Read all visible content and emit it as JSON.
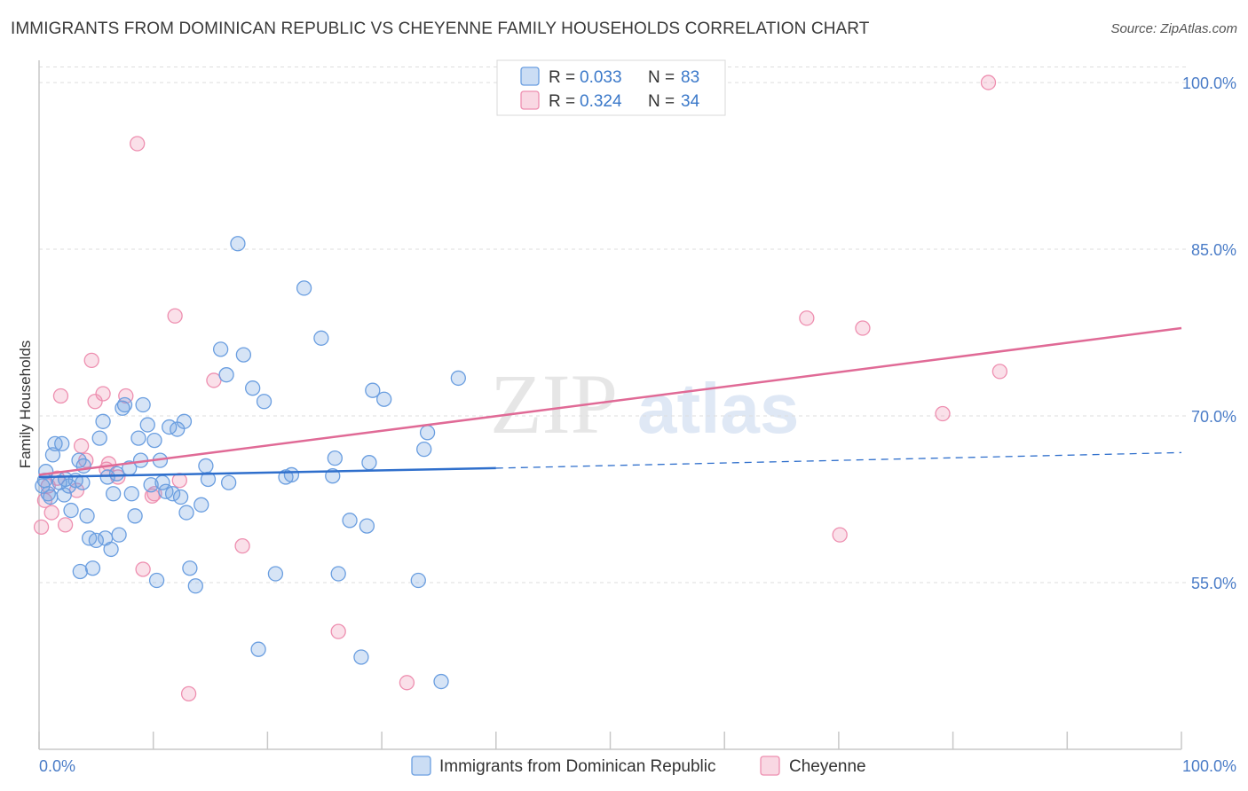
{
  "header": {
    "title": "IMMIGRANTS FROM DOMINICAN REPUBLIC VS CHEYENNE FAMILY HOUSEHOLDS CORRELATION CHART",
    "source": "Source: ZipAtlas.com"
  },
  "watermark": {
    "zip": "ZIP",
    "atlas": "atlas"
  },
  "legend": {
    "r_label": "R =",
    "n_label": "N =",
    "series1": {
      "r": "0.033",
      "n": "83"
    },
    "series2": {
      "r": "0.324",
      "n": "34"
    }
  },
  "chart_data": {
    "type": "scatter",
    "title": "IMMIGRANTS FROM DOMINICAN REPUBLIC VS CHEYENNE FAMILY HOUSEHOLDS CORRELATION CHART",
    "xlabel": "",
    "ylabel": "Family Households",
    "xlim": [
      0,
      100
    ],
    "ylim": [
      40,
      102
    ],
    "x_tick_labels": [
      "0.0%",
      "100.0%"
    ],
    "y_ticks": [
      {
        "value": 100,
        "label": "100.0%"
      },
      {
        "value": 85,
        "label": "85.0%"
      },
      {
        "value": 70,
        "label": "70.0%"
      },
      {
        "value": 55,
        "label": "55.0%"
      }
    ],
    "colors": {
      "series1": "#6a9ee0",
      "series2": "#ee8fb0",
      "line1": "#2f6fcc",
      "line2": "#e06a96",
      "tick": "#4a7cc7"
    },
    "series": [
      {
        "name": "Immigrants from Dominican Republic",
        "trend": {
          "x": [
            0,
            40
          ],
          "y": [
            64.5,
            65.3
          ],
          "dashed_to": [
            100,
            66.7
          ]
        },
        "points": [
          [
            0.5,
            64.2
          ],
          [
            0.8,
            63.0
          ],
          [
            0.6,
            65.0
          ],
          [
            1.2,
            66.5
          ],
          [
            1.4,
            67.5
          ],
          [
            1.8,
            64.0
          ],
          [
            2.0,
            67.5
          ],
          [
            2.3,
            64.3
          ],
          [
            2.6,
            63.7
          ],
          [
            2.8,
            61.5
          ],
          [
            3.2,
            64.2
          ],
          [
            3.5,
            66.0
          ],
          [
            3.6,
            56.0
          ],
          [
            3.9,
            65.5
          ],
          [
            4.2,
            61.0
          ],
          [
            4.4,
            59.0
          ],
          [
            4.7,
            56.3
          ],
          [
            5.0,
            58.8
          ],
          [
            5.3,
            68.0
          ],
          [
            5.6,
            69.5
          ],
          [
            5.8,
            59.0
          ],
          [
            6.0,
            64.5
          ],
          [
            6.3,
            58.0
          ],
          [
            6.5,
            63.0
          ],
          [
            6.8,
            64.8
          ],
          [
            7.0,
            59.3
          ],
          [
            7.3,
            70.7
          ],
          [
            7.5,
            71.0
          ],
          [
            7.9,
            65.3
          ],
          [
            8.1,
            63.0
          ],
          [
            8.4,
            61.0
          ],
          [
            8.7,
            68.0
          ],
          [
            8.9,
            66.0
          ],
          [
            9.1,
            71.0
          ],
          [
            9.5,
            69.2
          ],
          [
            9.8,
            63.8
          ],
          [
            10.1,
            67.8
          ],
          [
            10.3,
            55.2
          ],
          [
            10.6,
            66.0
          ],
          [
            10.8,
            64.0
          ],
          [
            11.1,
            63.2
          ],
          [
            11.4,
            69.0
          ],
          [
            11.7,
            63.0
          ],
          [
            12.1,
            68.8
          ],
          [
            12.4,
            62.7
          ],
          [
            12.7,
            69.5
          ],
          [
            12.9,
            61.3
          ],
          [
            13.2,
            56.3
          ],
          [
            13.7,
            54.7
          ],
          [
            14.2,
            62.0
          ],
          [
            14.6,
            65.5
          ],
          [
            14.8,
            64.3
          ],
          [
            15.9,
            76.0
          ],
          [
            16.4,
            73.7
          ],
          [
            16.6,
            64.0
          ],
          [
            17.4,
            85.5
          ],
          [
            17.9,
            75.5
          ],
          [
            18.7,
            72.5
          ],
          [
            19.2,
            49.0
          ],
          [
            19.7,
            71.3
          ],
          [
            20.7,
            55.8
          ],
          [
            21.6,
            64.5
          ],
          [
            22.1,
            64.7
          ],
          [
            23.2,
            81.5
          ],
          [
            24.7,
            77.0
          ],
          [
            25.7,
            64.6
          ],
          [
            25.9,
            66.2
          ],
          [
            26.2,
            55.8
          ],
          [
            27.2,
            60.6
          ],
          [
            28.2,
            48.3
          ],
          [
            28.7,
            60.1
          ],
          [
            28.9,
            65.8
          ],
          [
            29.2,
            72.3
          ],
          [
            30.2,
            71.5
          ],
          [
            33.2,
            55.2
          ],
          [
            33.7,
            67.0
          ],
          [
            34.0,
            68.5
          ],
          [
            35.2,
            46.1
          ],
          [
            36.7,
            73.4
          ],
          [
            3.8,
            64.0
          ],
          [
            0.3,
            63.7
          ],
          [
            1.0,
            62.7
          ],
          [
            2.2,
            62.9
          ]
        ]
      },
      {
        "name": "Cheyenne",
        "trend": {
          "x": [
            0,
            100
          ],
          "y": [
            64.7,
            77.9
          ]
        },
        "points": [
          [
            0.2,
            60.0
          ],
          [
            0.8,
            63.7
          ],
          [
            1.1,
            61.3
          ],
          [
            1.9,
            71.8
          ],
          [
            2.3,
            60.2
          ],
          [
            3.3,
            63.3
          ],
          [
            3.7,
            67.3
          ],
          [
            4.1,
            66.0
          ],
          [
            4.6,
            75.0
          ],
          [
            4.9,
            71.3
          ],
          [
            5.6,
            72.0
          ],
          [
            5.9,
            65.2
          ],
          [
            6.1,
            65.7
          ],
          [
            6.9,
            64.5
          ],
          [
            7.6,
            71.8
          ],
          [
            8.6,
            94.5
          ],
          [
            9.1,
            56.2
          ],
          [
            9.9,
            62.8
          ],
          [
            10.1,
            63.0
          ],
          [
            11.9,
            79.0
          ],
          [
            12.3,
            64.2
          ],
          [
            13.1,
            45.0
          ],
          [
            15.3,
            73.2
          ],
          [
            17.8,
            58.3
          ],
          [
            26.2,
            50.6
          ],
          [
            32.2,
            46.0
          ],
          [
            67.2,
            78.8
          ],
          [
            70.1,
            59.3
          ],
          [
            72.1,
            77.9
          ],
          [
            79.1,
            70.2
          ],
          [
            83.1,
            100.0
          ],
          [
            84.1,
            74.0
          ],
          [
            1.6,
            64.4
          ],
          [
            0.5,
            62.4
          ]
        ]
      }
    ]
  },
  "bottom_legend": {
    "series1_label": "Immigrants from Dominican Republic",
    "series2_label": "Cheyenne"
  }
}
